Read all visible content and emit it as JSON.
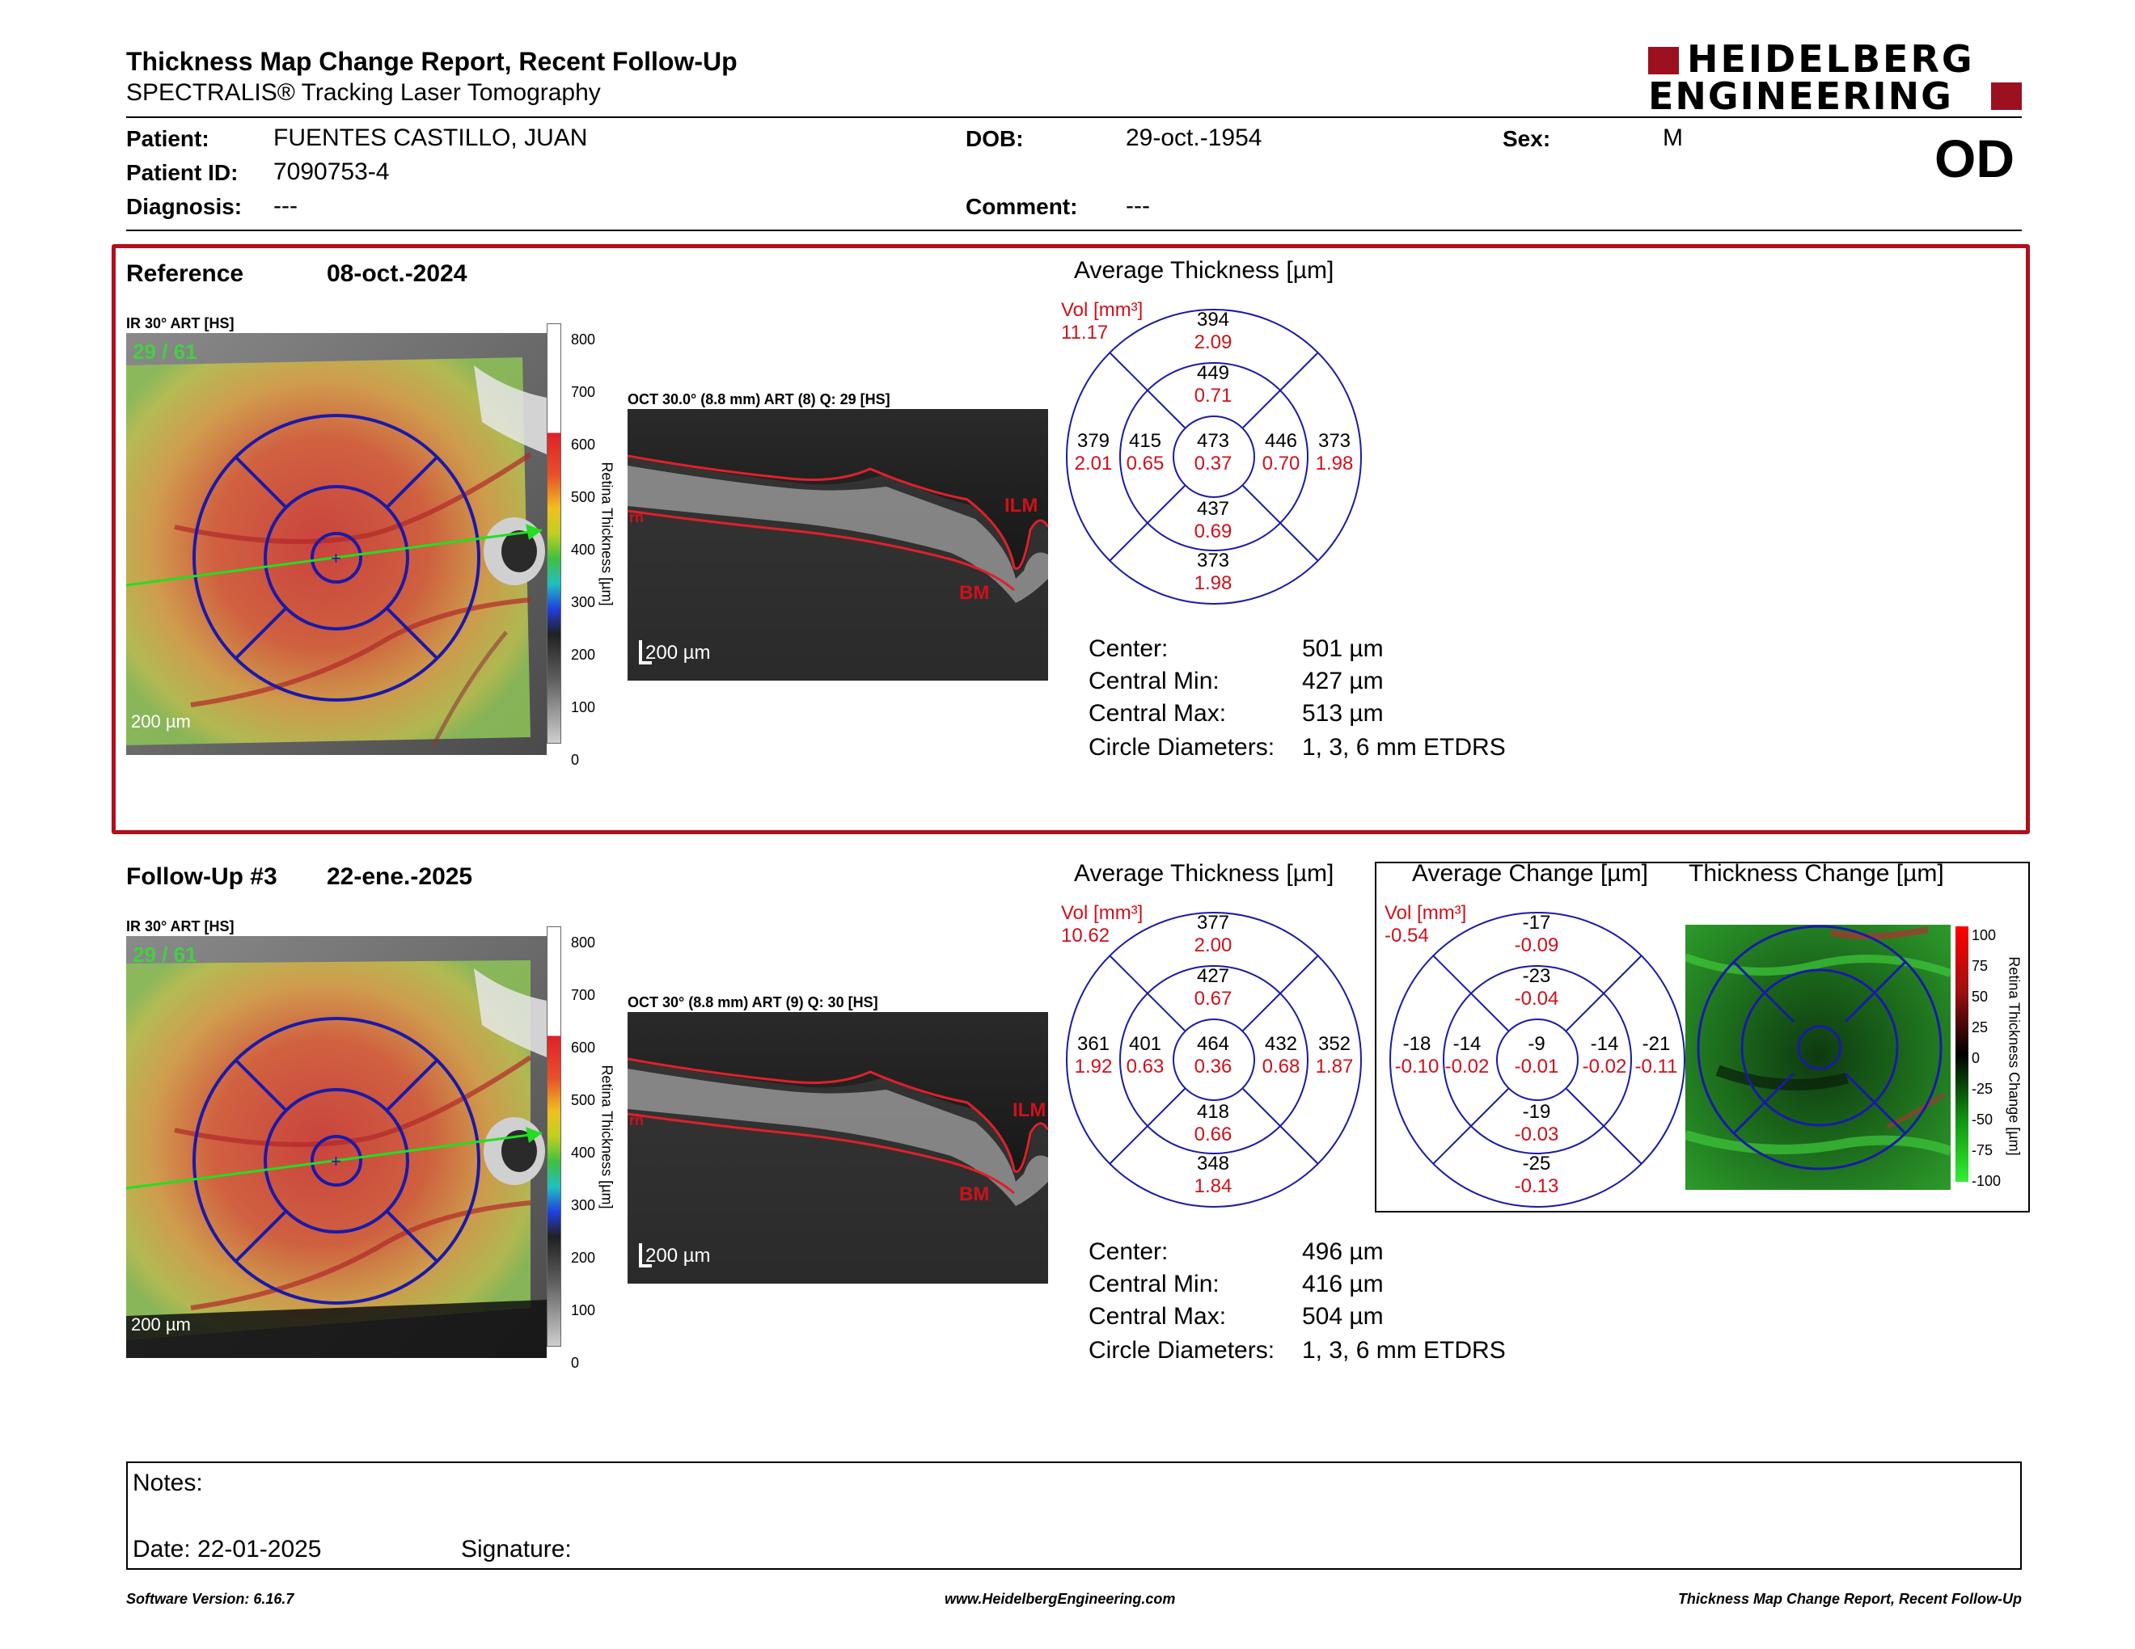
{
  "header": {
    "title": "Thickness Map Change Report, Recent Follow-Up",
    "subtitle": "SPECTRALIS® Tracking Laser Tomography",
    "logo_line1": "HEIDELBERG",
    "logo_line2": "ENGINEERING",
    "eye": "OD"
  },
  "patient": {
    "patient_label": "Patient:",
    "patient_value": "FUENTES CASTILLO, JUAN",
    "dob_label": "DOB:",
    "dob_value": "29-oct.-1954",
    "sex_label": "Sex:",
    "sex_value": "M",
    "id_label": "Patient ID:",
    "id_value": "7090753-4",
    "diagnosis_label": "Diagnosis:",
    "diagnosis_value": "---",
    "comment_label": "Comment:",
    "comment_value": "---"
  },
  "colors": {
    "frame_red": "#b0101a",
    "etdrs_blue": "#1a1aa8",
    "value_red": "#d0101a"
  },
  "reference": {
    "label": "Reference",
    "date": "08-oct.-2024",
    "ir_label": "IR 30° ART [HS]",
    "ir_overlay": "29 / 61",
    "scale_bar": "200 µm",
    "colorbar_ticks": [
      "800",
      "700",
      "600",
      "500",
      "400",
      "300",
      "200",
      "100",
      "0"
    ],
    "colorbar_title": "Retina Thickness [µm]",
    "oct_label": "OCT 30.0° (8.8 mm) ART (8) Q: 29 [HS]",
    "oct_scale": "200 µm",
    "ilm": "ILM",
    "bm": "BM",
    "rn": "rn",
    "avg_title": "Average Thickness [µm]",
    "vol_label": "Vol [mm³]",
    "vol_value": "11.17",
    "sectors": {
      "outer_sup": [
        "394",
        "2.09"
      ],
      "inner_sup": [
        "449",
        "0.71"
      ],
      "outer_temp": [
        "379",
        "2.01"
      ],
      "inner_temp": [
        "415",
        "0.65"
      ],
      "center": [
        "473",
        "0.37"
      ],
      "inner_nas": [
        "446",
        "0.70"
      ],
      "outer_nas": [
        "373",
        "1.98"
      ],
      "inner_inf": [
        "437",
        "0.69"
      ],
      "outer_inf": [
        "373",
        "1.98"
      ]
    },
    "stats": {
      "center_label": "Center:",
      "center_value": "501 µm",
      "min_label": "Central Min:",
      "min_value": "427 µm",
      "max_label": "Central Max:",
      "max_value": "513 µm",
      "diam_label": "Circle Diameters:",
      "diam_value": "1, 3, 6 mm ETDRS"
    }
  },
  "followup": {
    "label": "Follow-Up #3",
    "date": "22-ene.-2025",
    "ir_label": "IR 30° ART [HS]",
    "ir_overlay": "29 / 61",
    "scale_bar": "200 µm",
    "colorbar_ticks": [
      "800",
      "700",
      "600",
      "500",
      "400",
      "300",
      "200",
      "100",
      "0"
    ],
    "colorbar_title": "Retina Thickness [µm]",
    "oct_label": "OCT 30° (8.8 mm) ART (9) Q: 30 [HS]",
    "oct_scale": "200 µm",
    "ilm": "ILM",
    "bm": "BM",
    "rn": "rn",
    "avg_title": "Average Thickness [µm]",
    "vol_label": "Vol [mm³]",
    "vol_value": "10.62",
    "sectors": {
      "outer_sup": [
        "377",
        "2.00"
      ],
      "inner_sup": [
        "427",
        "0.67"
      ],
      "outer_temp": [
        "361",
        "1.92"
      ],
      "inner_temp": [
        "401",
        "0.63"
      ],
      "center": [
        "464",
        "0.36"
      ],
      "inner_nas": [
        "432",
        "0.68"
      ],
      "outer_nas": [
        "352",
        "1.87"
      ],
      "inner_inf": [
        "418",
        "0.66"
      ],
      "outer_inf": [
        "348",
        "1.84"
      ]
    },
    "change_title": "Average Change [µm]",
    "change_vol_label": "Vol [mm³]",
    "change_vol_value": "-0.54",
    "change_sectors": {
      "outer_sup": [
        "-17",
        "-0.09"
      ],
      "inner_sup": [
        "-23",
        "-0.04"
      ],
      "outer_temp": [
        "-18",
        "-0.10"
      ],
      "inner_temp": [
        "-14",
        "-0.02"
      ],
      "center": [
        "-9",
        "-0.01"
      ],
      "inner_nas": [
        "-14",
        "-0.02"
      ],
      "outer_nas": [
        "-21",
        "-0.11"
      ],
      "inner_inf": [
        "-19",
        "-0.03"
      ],
      "outer_inf": [
        "-25",
        "-0.13"
      ]
    },
    "thickness_change_title": "Thickness Change [µm]",
    "change_ticks": [
      "100",
      "75",
      "50",
      "25",
      "0",
      "-25",
      "-50",
      "-75",
      "-100"
    ],
    "change_colorbar_title": "Retina Thickness Change [µm]",
    "stats": {
      "center_label": "Center:",
      "center_value": "496 µm",
      "min_label": "Central Min:",
      "min_value": "416 µm",
      "max_label": "Central Max:",
      "max_value": "504 µm",
      "diam_label": "Circle Diameters:",
      "diam_value": "1, 3, 6 mm ETDRS"
    }
  },
  "notes": {
    "notes_label": "Notes:",
    "date_label": "Date: 22-01-2025",
    "signature_label": "Signature:"
  },
  "footer": {
    "version": "Software Version: 6.16.7",
    "website": "www.HeidelbergEngineering.com",
    "report_name": "Thickness Map Change Report, Recent Follow-Up"
  }
}
